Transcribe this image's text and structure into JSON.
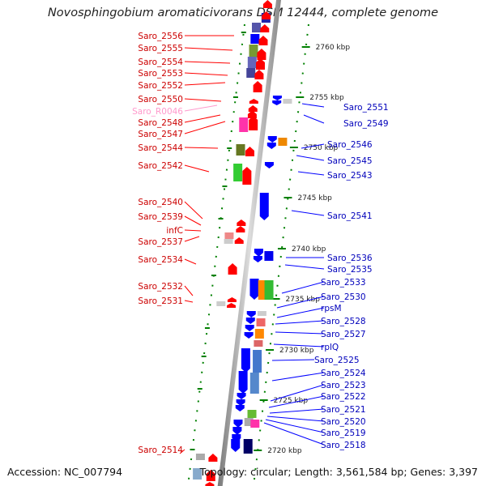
{
  "title": "Novosphingobium aromaticivorans DSM 12444, complete genome",
  "accession": "Accession: NC_007794",
  "summary": "Topology: circular; Length: 3,561,584 bp; Genes: 3,397",
  "colors": {
    "forward_gene": "#ff0000",
    "reverse_gene": "#0000ff",
    "forward_label": "#cc0000",
    "reverse_label": "#0000bb",
    "rna_label": "#ff99cc",
    "leader": "#ff0000",
    "ruler": "#008000",
    "backbone": "#999999"
  },
  "scale_labels": [
    "2760 kbp",
    "2755 kbp",
    "2750 kbp",
    "2745 kbp",
    "2740 kbp",
    "2735 kbp",
    "2730 kbp",
    "2725 kbp",
    "2720 kbp"
  ],
  "left_labels": [
    {
      "text": "Saro_2556"
    },
    {
      "text": "Saro_2555"
    },
    {
      "text": "Saro_2554"
    },
    {
      "text": "Saro_2553"
    },
    {
      "text": "Saro_2552"
    },
    {
      "text": "Saro_2550"
    },
    {
      "text": "Saro_R0046",
      "rna": true
    },
    {
      "text": "Saro_2548"
    },
    {
      "text": "Saro_2547"
    },
    {
      "text": "Saro_2544"
    },
    {
      "text": "Saro_2542"
    },
    {
      "text": "Saro_2540"
    },
    {
      "text": "Saro_2539"
    },
    {
      "text": "infC"
    },
    {
      "text": "Saro_2537"
    },
    {
      "text": "Saro_2534"
    },
    {
      "text": "Saro_2532"
    },
    {
      "text": "Saro_2531"
    },
    {
      "text": "Saro_2514"
    }
  ],
  "right_labels": [
    {
      "text": "Saro_2551"
    },
    {
      "text": "Saro_2549"
    },
    {
      "text": "Saro_2546"
    },
    {
      "text": "Saro_2545"
    },
    {
      "text": "Saro_2543"
    },
    {
      "text": "Saro_2541"
    },
    {
      "text": "Saro_2536"
    },
    {
      "text": "Saro_2535"
    },
    {
      "text": "Saro_2533"
    },
    {
      "text": "Saro_2530"
    },
    {
      "text": "rpsM"
    },
    {
      "text": "Saro_2528"
    },
    {
      "text": "Saro_2527"
    },
    {
      "text": "rplQ"
    },
    {
      "text": "Saro_2525"
    },
    {
      "text": "Saro_2524"
    },
    {
      "text": "Saro_2523"
    },
    {
      "text": "Saro_2522"
    },
    {
      "text": "Saro_2521"
    },
    {
      "text": "Saro_2520"
    },
    {
      "text": "Saro_2519"
    },
    {
      "text": "Saro_2518"
    }
  ]
}
